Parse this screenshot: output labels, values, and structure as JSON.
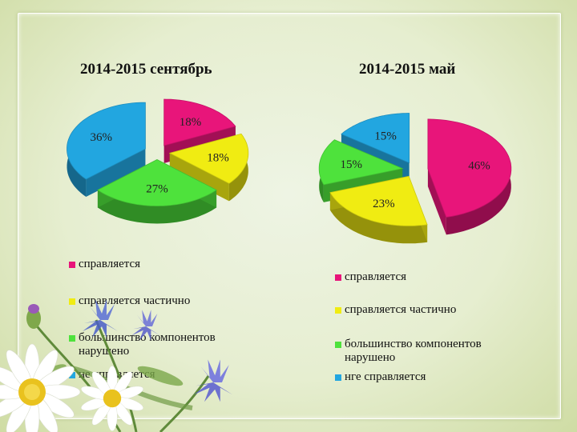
{
  "chart_data": [
    {
      "type": "pie",
      "title": "2014-2015 сентябрь",
      "categories": [
        "справляется",
        "справляется частично",
        "большинство компонентов нарушено",
        "не справляется"
      ],
      "values": [
        18,
        18,
        27,
        36
      ],
      "data_labels": [
        "18%",
        "18%",
        "27%",
        "36%"
      ],
      "colors": [
        "#e8157a",
        "#f0ec12",
        "#4ee23c",
        "#22a6e0"
      ],
      "legend": {
        "placement": "bottom",
        "entries": [
          {
            "label": "справляется",
            "color": "#e8157a"
          },
          {
            "label": "справляется частично",
            "color": "#f0ec12"
          },
          {
            "label": "большинство компонентов нарушено",
            "color": "#4ee23c"
          },
          {
            "label": "не справляется",
            "color": "#22a6e0"
          }
        ]
      }
    },
    {
      "type": "pie",
      "title": "2014-2015 май",
      "categories": [
        "справляется",
        "справляется частично",
        "большинство компонентов нарушено",
        "нге справляется"
      ],
      "values": [
        46,
        23,
        15,
        15
      ],
      "data_labels": [
        "46%",
        "23%",
        "15%",
        "15%"
      ],
      "colors": [
        "#e8157a",
        "#f0ec12",
        "#4ee23c",
        "#22a6e0"
      ],
      "legend": {
        "placement": "bottom",
        "entries": [
          {
            "label": "справляется",
            "color": "#e8157a"
          },
          {
            "label": "справляется частично",
            "color": "#f0ec12"
          },
          {
            "label": "большинство компонентов нарушено",
            "color": "#4ee23c"
          },
          {
            "label": "нге справляется",
            "color": "#22a6e0"
          }
        ]
      }
    }
  ]
}
